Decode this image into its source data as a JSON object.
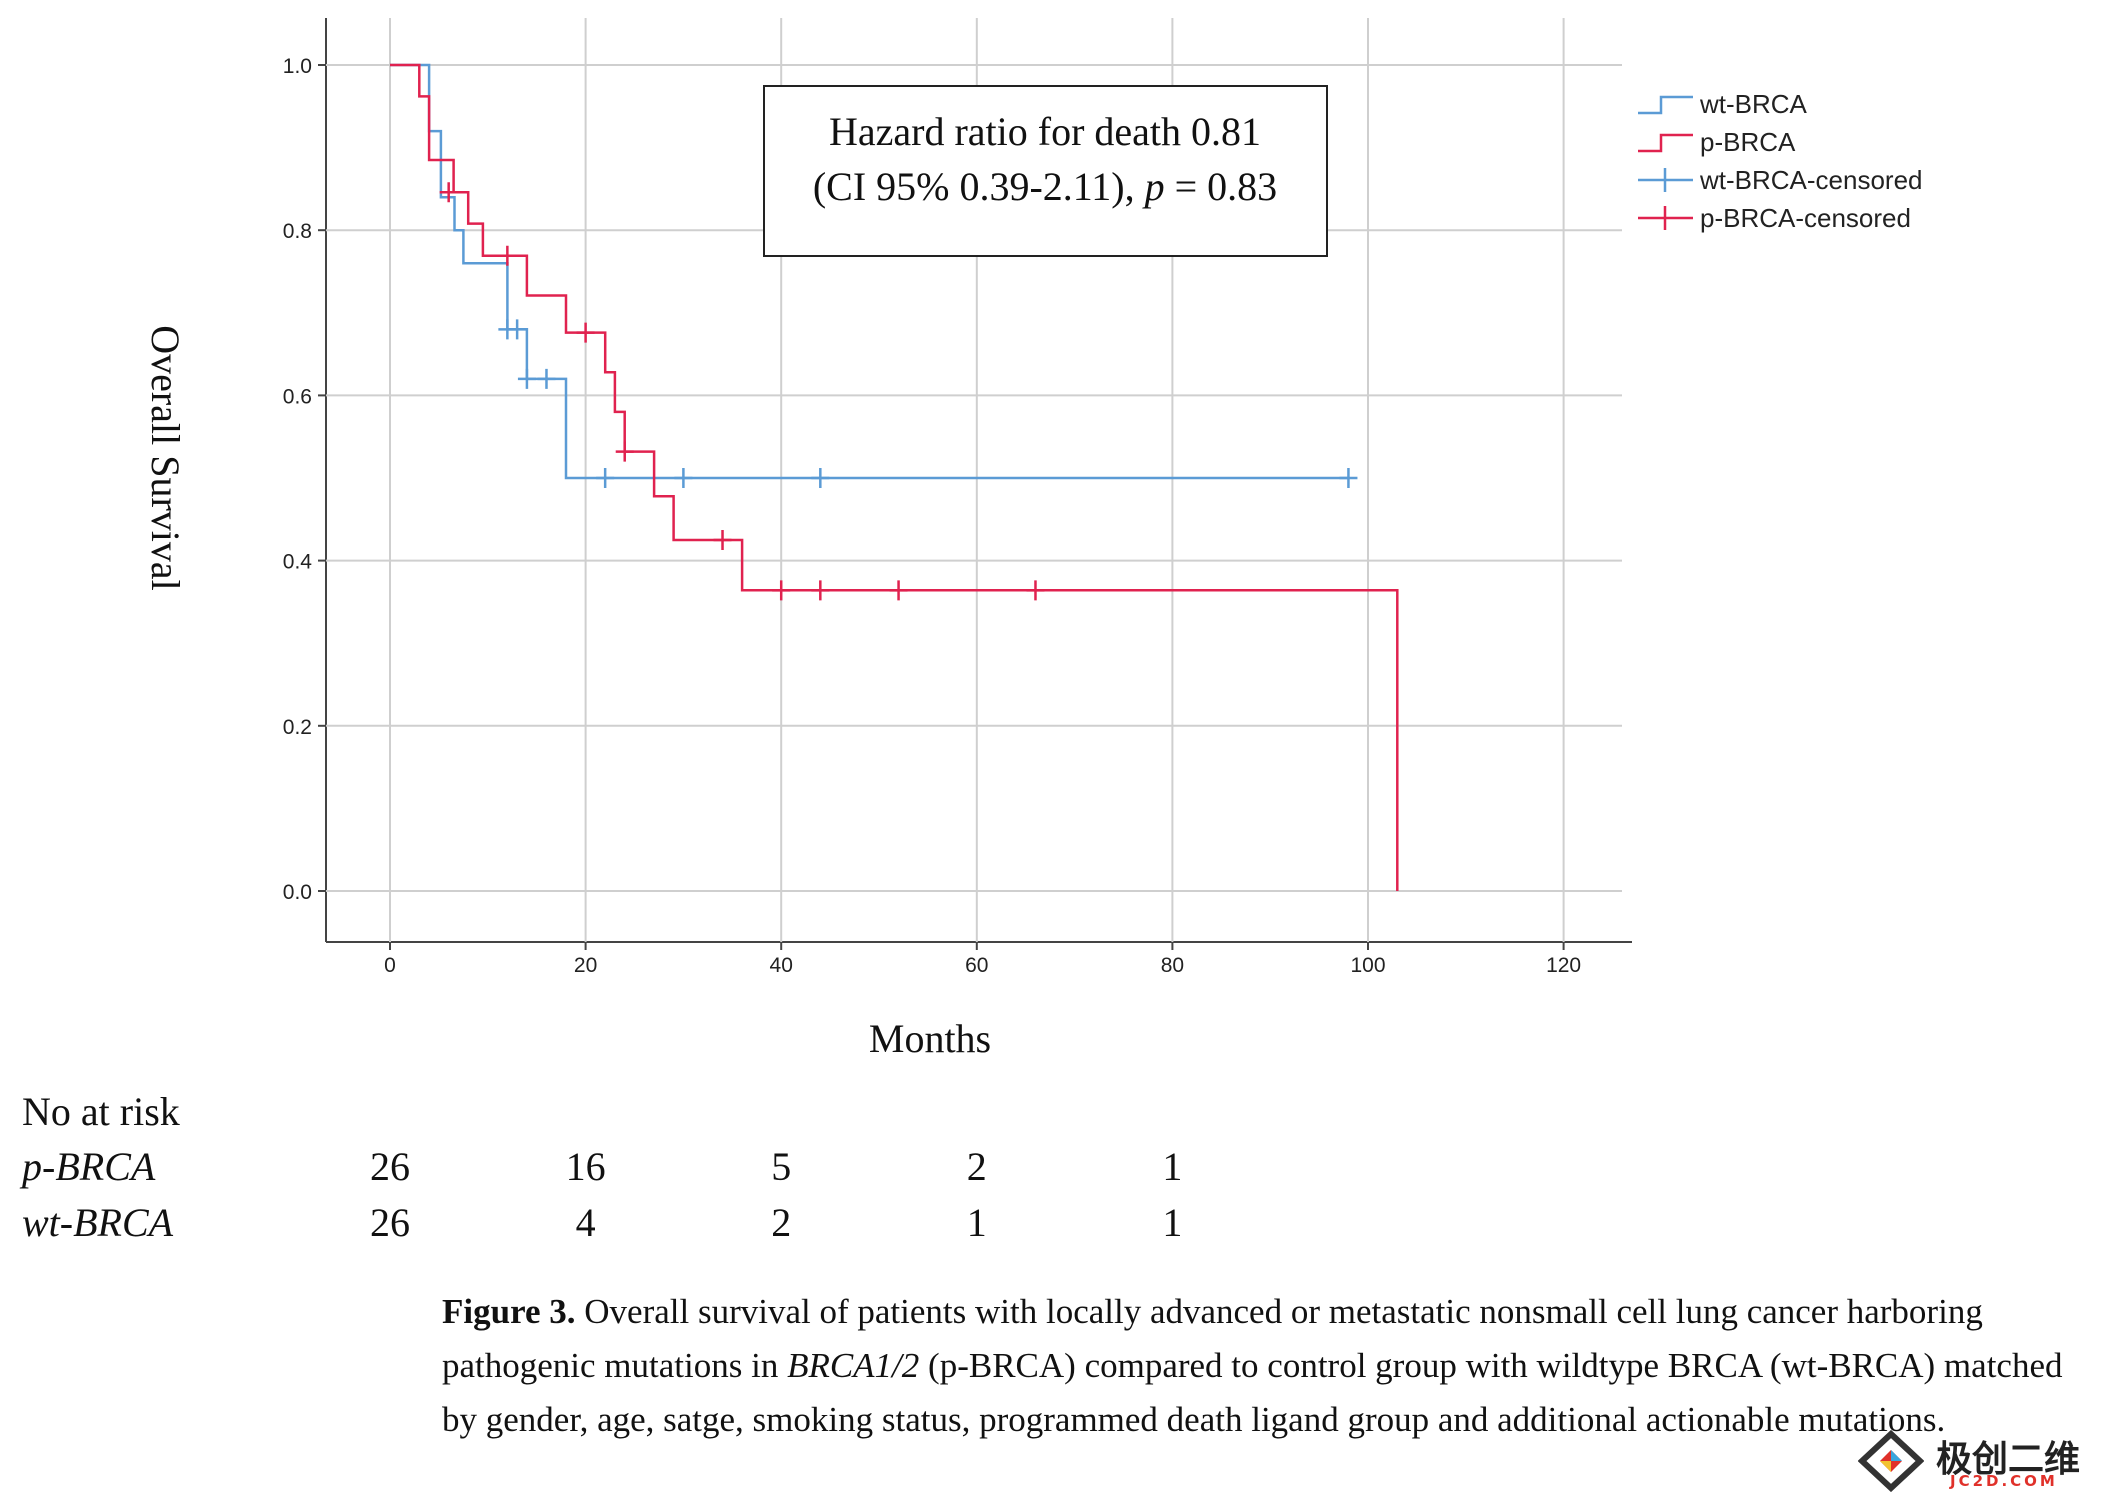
{
  "chart_data": {
    "type": "line",
    "title": "",
    "xlabel": "Months",
    "ylabel": "Overall Survival",
    "xlim": [
      -6.5,
      126
    ],
    "ylim": [
      -0.055,
      1.055
    ],
    "grid": true,
    "x_ticks": [
      0,
      20,
      40,
      60,
      80,
      100,
      120
    ],
    "x_tick_labels": [
      "0",
      "20",
      "40",
      "60",
      "80",
      "100",
      "120"
    ],
    "y_ticks": [
      0.0,
      0.2,
      0.4,
      0.6,
      0.8,
      1.0
    ],
    "y_tick_labels": [
      "0.0",
      "0.2",
      "0.4",
      "0.6",
      "0.8",
      "1.0"
    ],
    "legend_position": "right",
    "legend": [
      "wt-BRCA",
      "p-BRCA",
      "wt-BRCA-censored",
      "p-BRCA-censored"
    ],
    "series": [
      {
        "name": "wt-BRCA",
        "color": "#5b9bd5",
        "step": [
          [
            0,
            1.0
          ],
          [
            4,
            1.0
          ],
          [
            4,
            0.92
          ],
          [
            5.2,
            0.92
          ],
          [
            5.2,
            0.84
          ],
          [
            6.6,
            0.84
          ],
          [
            6.6,
            0.8
          ],
          [
            7.5,
            0.8
          ],
          [
            7.5,
            0.76
          ],
          [
            12,
            0.76
          ],
          [
            12,
            0.68
          ],
          [
            14,
            0.68
          ],
          [
            14,
            0.62
          ],
          [
            18,
            0.62
          ],
          [
            18,
            0.5
          ],
          [
            98,
            0.5
          ]
        ],
        "censored": [
          [
            12,
            0.68
          ],
          [
            13,
            0.68
          ],
          [
            14,
            0.62
          ],
          [
            16,
            0.62
          ],
          [
            22,
            0.5
          ],
          [
            30,
            0.5
          ],
          [
            44,
            0.5
          ],
          [
            98,
            0.5
          ]
        ]
      },
      {
        "name": "p-BRCA",
        "color": "#e0224f",
        "step": [
          [
            0,
            1.0
          ],
          [
            3,
            1.0
          ],
          [
            3,
            0.962
          ],
          [
            4,
            0.962
          ],
          [
            4,
            0.885
          ],
          [
            6.5,
            0.885
          ],
          [
            6.5,
            0.846
          ],
          [
            8,
            0.846
          ],
          [
            8,
            0.808
          ],
          [
            9.5,
            0.808
          ],
          [
            9.5,
            0.769
          ],
          [
            14,
            0.769
          ],
          [
            14,
            0.721
          ],
          [
            18,
            0.721
          ],
          [
            18,
            0.676
          ],
          [
            22,
            0.676
          ],
          [
            22,
            0.628
          ],
          [
            23,
            0.628
          ],
          [
            23,
            0.58
          ],
          [
            24,
            0.58
          ],
          [
            24,
            0.532
          ],
          [
            27,
            0.532
          ],
          [
            27,
            0.478
          ],
          [
            29,
            0.478
          ],
          [
            29,
            0.425
          ],
          [
            36,
            0.425
          ],
          [
            36,
            0.364
          ],
          [
            103,
            0.364
          ],
          [
            103,
            0.0
          ]
        ],
        "censored": [
          [
            6,
            0.846
          ],
          [
            12,
            0.769
          ],
          [
            20,
            0.676
          ],
          [
            24,
            0.532
          ],
          [
            34,
            0.425
          ],
          [
            40,
            0.364
          ],
          [
            44,
            0.364
          ],
          [
            52,
            0.364
          ],
          [
            66,
            0.364
          ]
        ]
      }
    ],
    "annotation": {
      "line1": "Hazard ratio for death 0.81",
      "line2_prefix": "(CI 95% 0.39-2.11), ",
      "line2_p": "p",
      "line2_suffix": " = 0.83"
    },
    "risk_table": {
      "title": "No at risk",
      "times": [
        0,
        20,
        40,
        60,
        80
      ],
      "rows": [
        {
          "label": "p-BRCA",
          "counts": [
            "26",
            "16",
            "5",
            "2",
            "1"
          ]
        },
        {
          "label": "wt-BRCA",
          "counts": [
            "26",
            "4",
            "2",
            "1",
            "1"
          ]
        }
      ]
    }
  },
  "caption": {
    "bold": "Figure 3.",
    "t1": " Overall survival of patients with locally advanced or metastatic nonsmall cell lung cancer harboring pathogenic mutations in ",
    "italic": "BRCA1/2",
    "t2": " (p-BRCA) compared to control group with wildtype BRCA (wt-BRCA) matched by gender, age, satge, smoking status, programmed death ligand group and additional actionable mutations."
  },
  "watermark": {
    "cn": "极创二维",
    "en": "JC2D.COM"
  }
}
